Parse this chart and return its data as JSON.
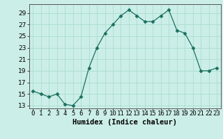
{
  "x": [
    0,
    1,
    2,
    3,
    4,
    5,
    6,
    7,
    8,
    9,
    10,
    11,
    12,
    13,
    14,
    15,
    16,
    17,
    18,
    19,
    20,
    21,
    22,
    23
  ],
  "y": [
    15.5,
    15.0,
    14.5,
    15.0,
    13.2,
    13.0,
    14.5,
    19.5,
    23.0,
    25.5,
    27.0,
    28.5,
    29.5,
    28.5,
    27.5,
    27.5,
    28.5,
    29.5,
    26.0,
    25.5,
    23.0,
    19.0,
    19.0,
    19.5
  ],
  "line_color": "#1a7060",
  "marker": "D",
  "marker_size": 2.5,
  "bg_color": "#cceee8",
  "grid_color": "#aaddcc",
  "xlabel": "Humidex (Indice chaleur)",
  "xlim": [
    -0.5,
    23.5
  ],
  "ylim": [
    12.5,
    30.5
  ],
  "yticks": [
    13,
    15,
    17,
    19,
    21,
    23,
    25,
    27,
    29
  ],
  "xtick_labels": [
    "0",
    "1",
    "2",
    "3",
    "4",
    "5",
    "6",
    "7",
    "8",
    "9",
    "10",
    "11",
    "12",
    "13",
    "14",
    "15",
    "16",
    "17",
    "18",
    "19",
    "20",
    "21",
    "22",
    "23"
  ],
  "xlabel_fontsize": 7.5,
  "tick_fontsize": 6.5
}
